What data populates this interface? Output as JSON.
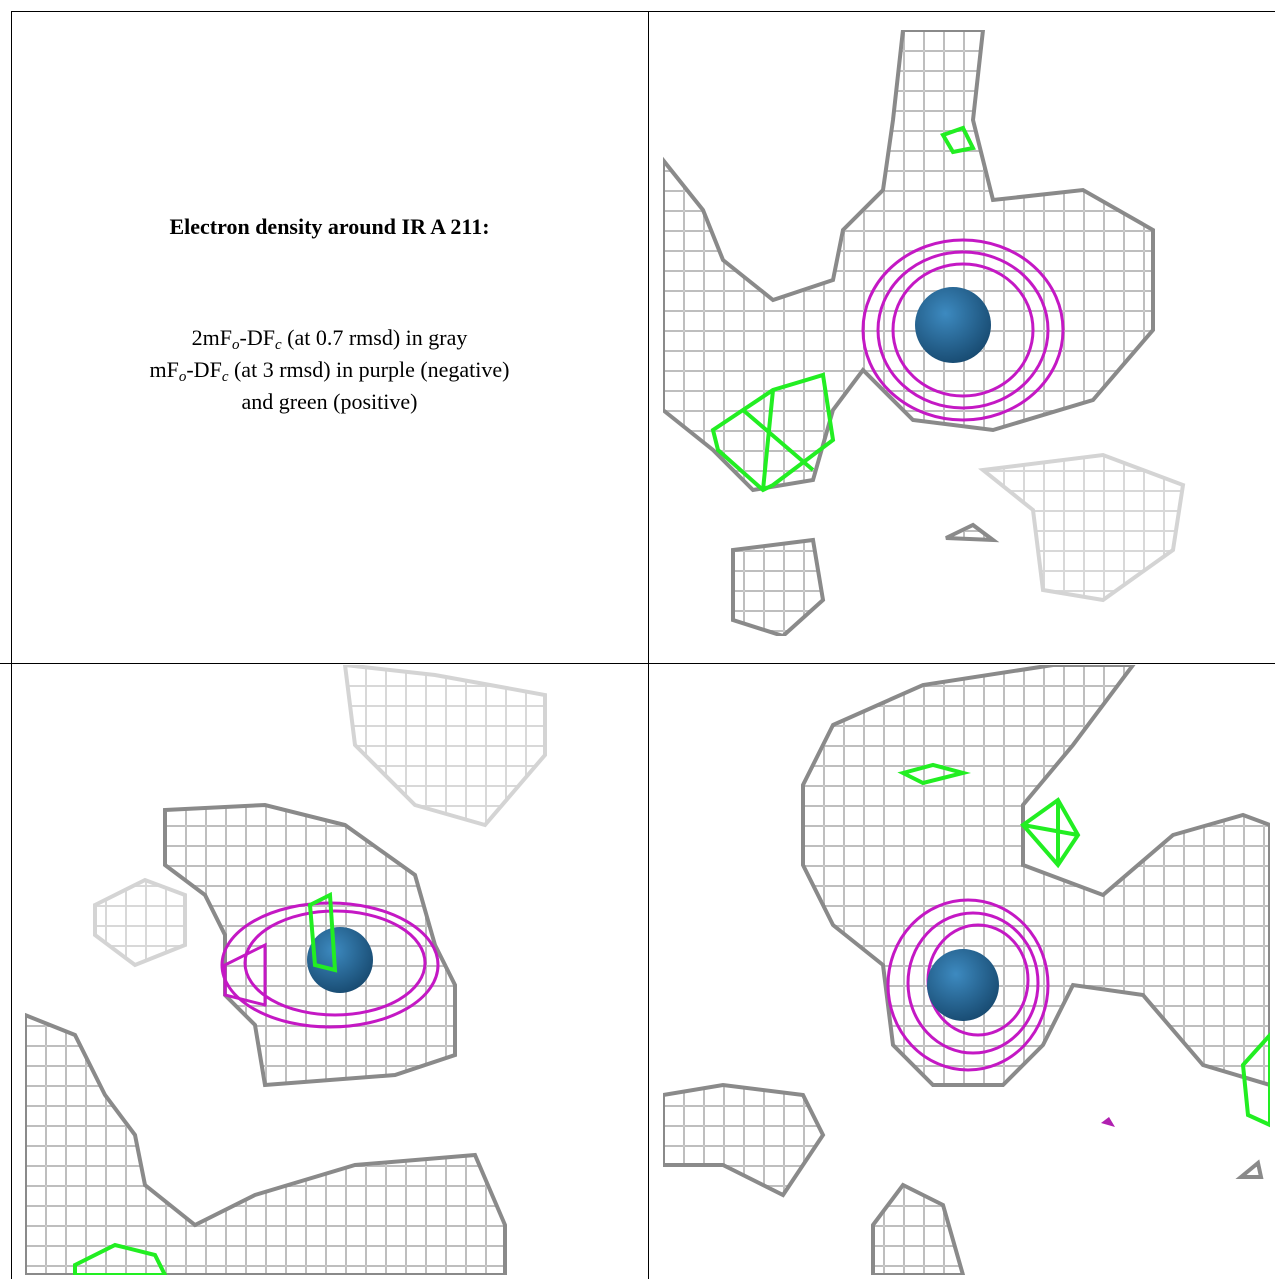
{
  "caption": {
    "title": "Electron density around IR A 211:",
    "lines": [
      [
        "2mF",
        "o",
        "-DF",
        "c",
        " (at 0.7 rmsd) in gray"
      ],
      [
        "mF",
        "o",
        "-DF",
        "c",
        " (at 3 rmsd) in purple (negative)"
      ],
      [
        "and green (positive)"
      ]
    ]
  }
}
